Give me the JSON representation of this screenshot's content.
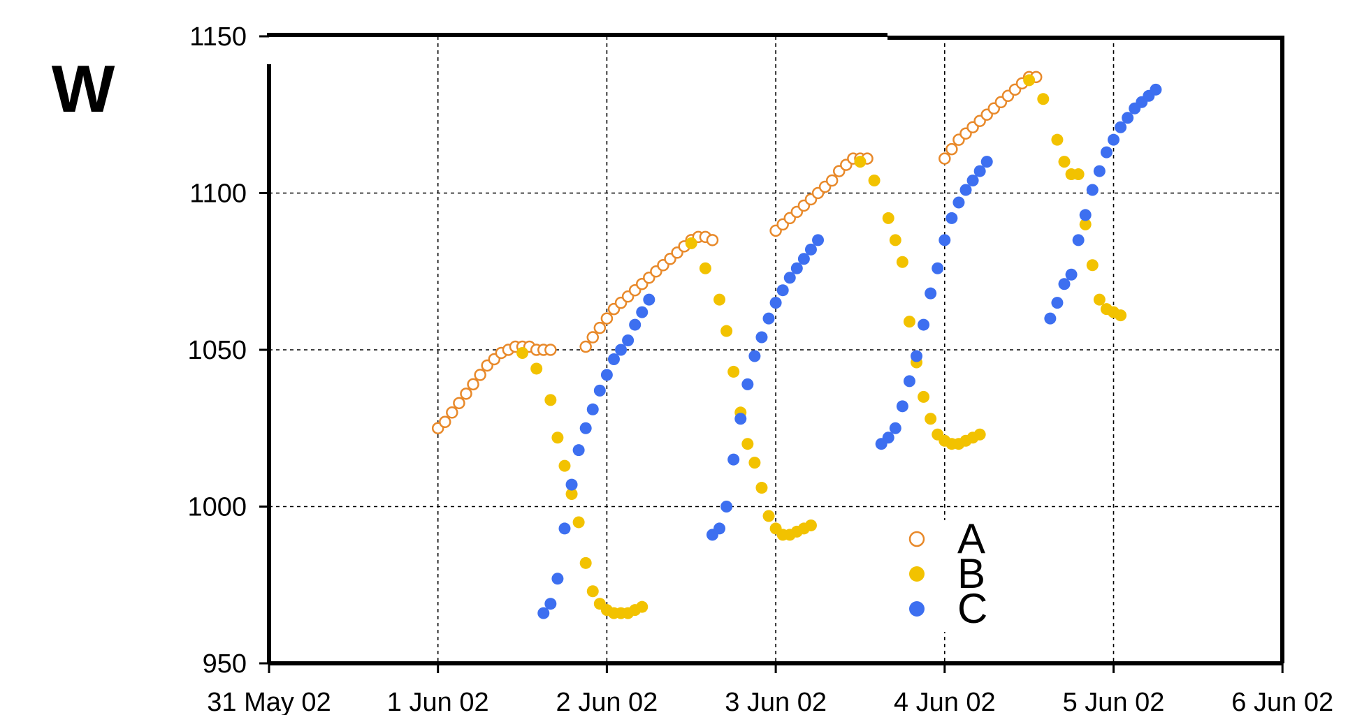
{
  "chart_data": {
    "type": "scatter",
    "ylabel": "W",
    "xlabel": "",
    "title": "",
    "ylim": [
      950,
      1150
    ],
    "xlim": [
      "31 May 02",
      "6 Jun 02"
    ],
    "x_ticks": [
      "31 May 02",
      "1 Jun 02",
      "2 Jun 02",
      "3 Jun 02",
      "4 Jun 02",
      "5 Jun 02",
      "6 Jun 02"
    ],
    "y_ticks": [
      "950",
      "1000",
      "1050",
      "1100",
      "1150"
    ],
    "grid": true,
    "legend_position": "lower-right",
    "series": [
      {
        "name": "A",
        "marker": "open-circle",
        "color": "#E8892A",
        "x": [
          "1 Jun 02 00:00",
          "1 Jun 02 01:00",
          "1 Jun 02 02:00",
          "1 Jun 02 03:00",
          "1 Jun 02 04:00",
          "1 Jun 02 05:00",
          "1 Jun 02 06:00",
          "1 Jun 02 07:00",
          "1 Jun 02 08:00",
          "1 Jun 02 09:00",
          "1 Jun 02 10:00",
          "1 Jun 02 11:00",
          "1 Jun 02 12:00",
          "1 Jun 02 13:00",
          "1 Jun 02 14:00",
          "1 Jun 02 15:00",
          "1 Jun 02 16:00",
          "1 Jun 02 21:00",
          "1 Jun 02 22:00",
          "1 Jun 02 23:00",
          "2 Jun 02 00:00",
          "2 Jun 02 01:00",
          "2 Jun 02 02:00",
          "2 Jun 02 03:00",
          "2 Jun 02 04:00",
          "2 Jun 02 05:00",
          "2 Jun 02 06:00",
          "2 Jun 02 07:00",
          "2 Jun 02 08:00",
          "2 Jun 02 09:00",
          "2 Jun 02 10:00",
          "2 Jun 02 11:00",
          "2 Jun 02 12:00",
          "2 Jun 02 13:00",
          "2 Jun 02 14:00",
          "2 Jun 02 15:00",
          "3 Jun 02 00:00",
          "3 Jun 02 01:00",
          "3 Jun 02 02:00",
          "3 Jun 02 03:00",
          "3 Jun 02 04:00",
          "3 Jun 02 05:00",
          "3 Jun 02 06:00",
          "3 Jun 02 07:00",
          "3 Jun 02 08:00",
          "3 Jun 02 09:00",
          "3 Jun 02 10:00",
          "3 Jun 02 11:00",
          "3 Jun 02 12:00",
          "3 Jun 02 13:00",
          "4 Jun 02 00:00",
          "4 Jun 02 01:00",
          "4 Jun 02 02:00",
          "4 Jun 02 03:00",
          "4 Jun 02 04:00",
          "4 Jun 02 05:00",
          "4 Jun 02 06:00",
          "4 Jun 02 07:00",
          "4 Jun 02 08:00",
          "4 Jun 02 09:00",
          "4 Jun 02 10:00",
          "4 Jun 02 11:00",
          "4 Jun 02 12:00",
          "4 Jun 02 13:00"
        ],
        "y": [
          1025,
          1027,
          1030,
          1033,
          1036,
          1039,
          1042,
          1045,
          1047,
          1049,
          1050,
          1051,
          1051,
          1051,
          1050,
          1050,
          1050,
          1051,
          1054,
          1057,
          1060,
          1063,
          1065,
          1067,
          1069,
          1071,
          1073,
          1075,
          1077,
          1079,
          1081,
          1083,
          1085,
          1086,
          1086,
          1085,
          1088,
          1090,
          1092,
          1094,
          1096,
          1098,
          1100,
          1102,
          1104,
          1107,
          1109,
          1111,
          1111,
          1111,
          1111,
          1114,
          1117,
          1119,
          1121,
          1123,
          1125,
          1127,
          1129,
          1131,
          1133,
          1135,
          1137,
          1137
        ]
      },
      {
        "name": "B",
        "marker": "filled-circle",
        "color": "#F2C200",
        "x": [
          "1 Jun 02 12:00",
          "1 Jun 02 14:00",
          "1 Jun 02 16:00",
          "1 Jun 02 17:00",
          "1 Jun 02 18:00",
          "1 Jun 02 19:00",
          "1 Jun 02 20:00",
          "1 Jun 02 21:00",
          "1 Jun 02 22:00",
          "1 Jun 02 23:00",
          "2 Jun 02 00:00",
          "2 Jun 02 01:00",
          "2 Jun 02 02:00",
          "2 Jun 02 03:00",
          "2 Jun 02 04:00",
          "2 Jun 02 05:00",
          "2 Jun 02 12:00",
          "2 Jun 02 14:00",
          "2 Jun 02 16:00",
          "2 Jun 02 17:00",
          "2 Jun 02 18:00",
          "2 Jun 02 19:00",
          "2 Jun 02 20:00",
          "2 Jun 02 21:00",
          "2 Jun 02 22:00",
          "2 Jun 02 23:00",
          "3 Jun 02 00:00",
          "3 Jun 02 01:00",
          "3 Jun 02 02:00",
          "3 Jun 02 03:00",
          "3 Jun 02 04:00",
          "3 Jun 02 05:00",
          "3 Jun 02 12:00",
          "3 Jun 02 14:00",
          "3 Jun 02 16:00",
          "3 Jun 02 17:00",
          "3 Jun 02 18:00",
          "3 Jun 02 19:00",
          "3 Jun 02 20:00",
          "3 Jun 02 21:00",
          "3 Jun 02 22:00",
          "3 Jun 02 23:00",
          "4 Jun 02 00:00",
          "4 Jun 02 01:00",
          "4 Jun 02 02:00",
          "4 Jun 02 03:00",
          "4 Jun 02 04:00",
          "4 Jun 02 05:00",
          "4 Jun 02 12:00",
          "4 Jun 02 14:00",
          "4 Jun 02 16:00",
          "4 Jun 02 17:00",
          "4 Jun 02 18:00",
          "4 Jun 02 19:00",
          "4 Jun 02 20:00",
          "4 Jun 02 21:00",
          "4 Jun 02 22:00",
          "4 Jun 02 23:00",
          "5 Jun 02 00:00",
          "5 Jun 02 01:00"
        ],
        "y": [
          1049,
          1044,
          1034,
          1022,
          1013,
          1004,
          995,
          982,
          973,
          969,
          967,
          966,
          966,
          966,
          967,
          968,
          1084,
          1076,
          1066,
          1056,
          1043,
          1030,
          1020,
          1014,
          1006,
          997,
          993,
          991,
          991,
          992,
          993,
          994,
          1110,
          1104,
          1092,
          1085,
          1078,
          1059,
          1046,
          1035,
          1028,
          1023,
          1021,
          1020,
          1020,
          1021,
          1022,
          1023,
          1136,
          1130,
          1117,
          1110,
          1106,
          1106,
          1090,
          1077,
          1066,
          1063,
          1062,
          1061
        ]
      },
      {
        "name": "C",
        "marker": "filled-circle",
        "color": "#3D6FF0",
        "x": [
          "1 Jun 02 15:00",
          "1 Jun 02 16:00",
          "1 Jun 02 17:00",
          "1 Jun 02 18:00",
          "1 Jun 02 19:00",
          "1 Jun 02 20:00",
          "1 Jun 02 21:00",
          "1 Jun 02 22:00",
          "1 Jun 02 23:00",
          "2 Jun 02 00:00",
          "2 Jun 02 01:00",
          "2 Jun 02 02:00",
          "2 Jun 02 03:00",
          "2 Jun 02 04:00",
          "2 Jun 02 05:00",
          "2 Jun 02 06:00",
          "2 Jun 02 15:00",
          "2 Jun 02 16:00",
          "2 Jun 02 17:00",
          "2 Jun 02 18:00",
          "2 Jun 02 19:00",
          "2 Jun 02 20:00",
          "2 Jun 02 21:00",
          "2 Jun 02 22:00",
          "2 Jun 02 23:00",
          "3 Jun 02 00:00",
          "3 Jun 02 01:00",
          "3 Jun 02 02:00",
          "3 Jun 02 03:00",
          "3 Jun 02 04:00",
          "3 Jun 02 05:00",
          "3 Jun 02 06:00",
          "3 Jun 02 15:00",
          "3 Jun 02 16:00",
          "3 Jun 02 17:00",
          "3 Jun 02 18:00",
          "3 Jun 02 19:00",
          "3 Jun 02 20:00",
          "3 Jun 02 21:00",
          "3 Jun 02 22:00",
          "3 Jun 02 23:00",
          "4 Jun 02 00:00",
          "4 Jun 02 01:00",
          "4 Jun 02 02:00",
          "4 Jun 02 03:00",
          "4 Jun 02 04:00",
          "4 Jun 02 05:00",
          "4 Jun 02 06:00",
          "4 Jun 02 15:00",
          "4 Jun 02 16:00",
          "4 Jun 02 17:00",
          "4 Jun 02 18:00",
          "4 Jun 02 19:00",
          "4 Jun 02 20:00",
          "4 Jun 02 21:00",
          "4 Jun 02 22:00",
          "4 Jun 02 23:00",
          "5 Jun 02 00:00",
          "5 Jun 02 01:00",
          "5 Jun 02 02:00",
          "5 Jun 02 03:00",
          "5 Jun 02 04:00",
          "5 Jun 02 05:00",
          "5 Jun 02 06:00"
        ],
        "y": [
          966,
          969,
          977,
          993,
          1007,
          1018,
          1025,
          1031,
          1037,
          1042,
          1047,
          1050,
          1053,
          1058,
          1062,
          1066,
          991,
          993,
          1000,
          1015,
          1028,
          1039,
          1048,
          1054,
          1060,
          1065,
          1069,
          1073,
          1076,
          1079,
          1082,
          1085,
          1020,
          1022,
          1025,
          1032,
          1040,
          1048,
          1058,
          1068,
          1076,
          1085,
          1092,
          1097,
          1101,
          1104,
          1107,
          1110,
          1060,
          1065,
          1071,
          1074,
          1085,
          1093,
          1101,
          1107,
          1113,
          1117,
          1121,
          1124,
          1127,
          1129,
          1131,
          1133
        ]
      }
    ]
  }
}
